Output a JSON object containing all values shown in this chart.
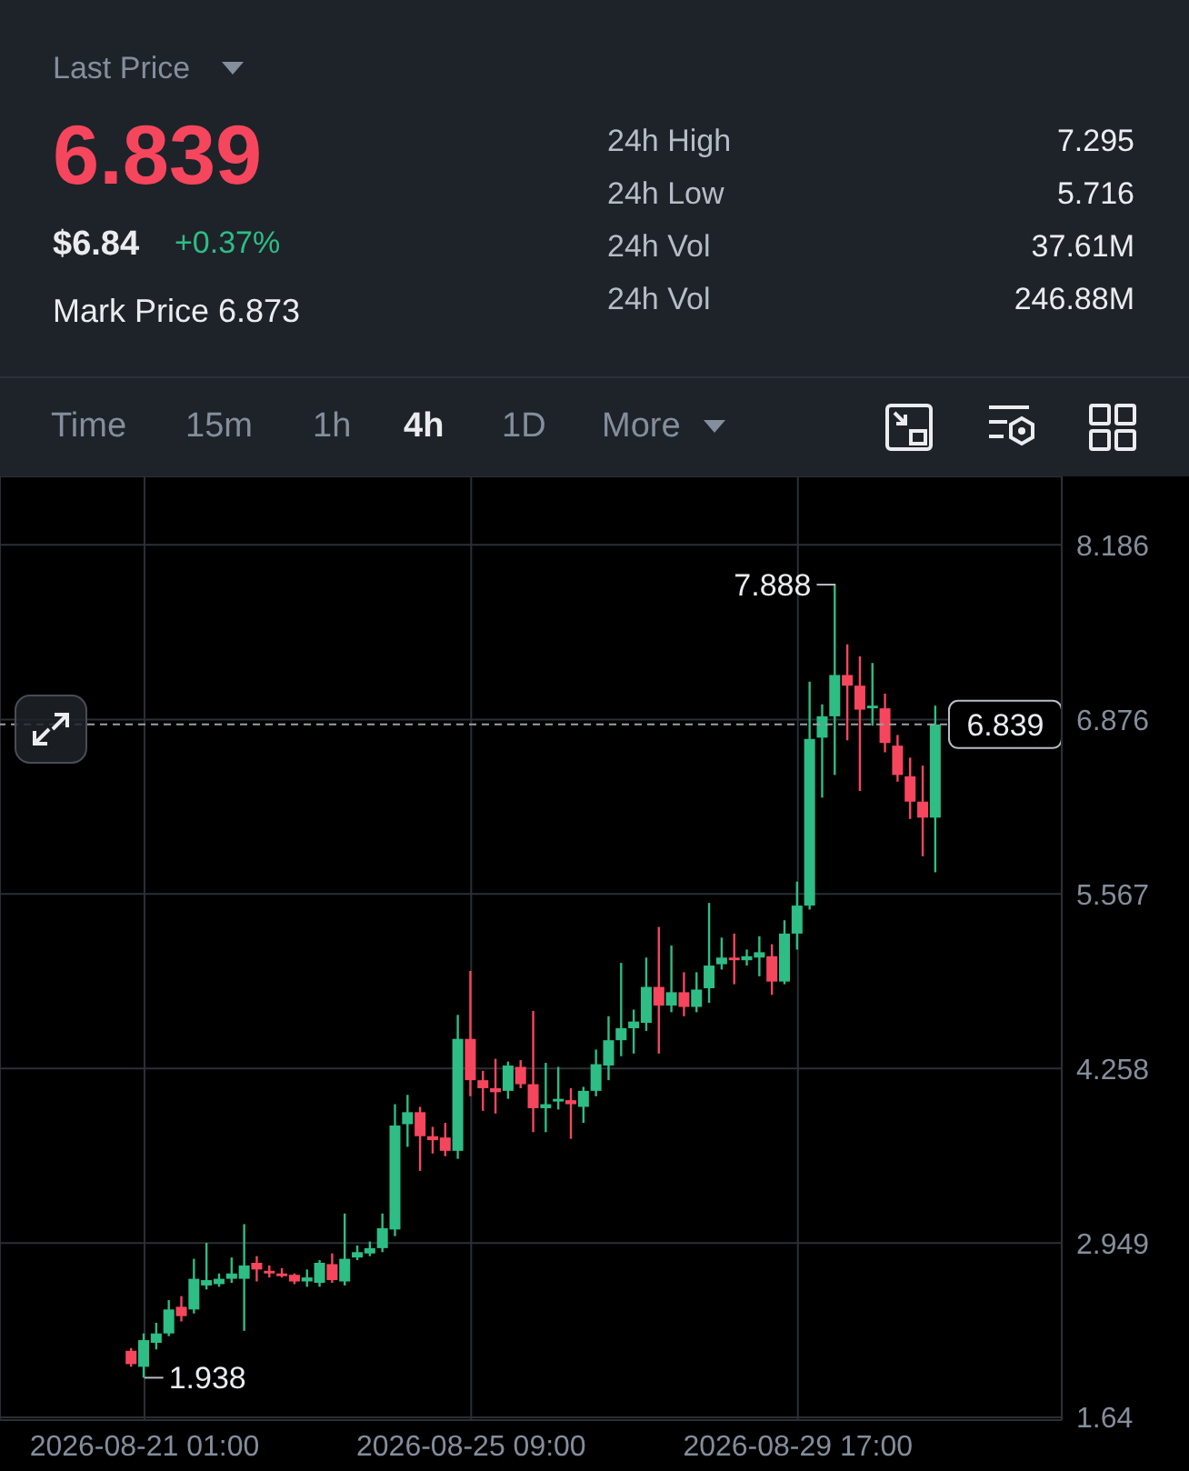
{
  "chart_data": [
    {
      "type": "other",
      "annotations": [
        "Last Price",
        "6.839",
        "$6.84",
        "+0.37%",
        "Mark Price 6.873",
        "24h High",
        "7.295",
        "24h Low",
        "5.716",
        "24h Vol",
        "37.61M",
        "24h Vol",
        "246.88M",
        "Time",
        "15m",
        "1h",
        "4h",
        "1D",
        "More"
      ]
    },
    {
      "type": "candlestick",
      "categories": [
        null,
        "2026-08-21 01:00",
        null,
        null,
        null,
        null,
        null,
        null,
        null,
        null,
        null,
        null,
        null,
        null,
        null,
        null,
        null,
        null,
        null,
        null,
        null,
        null,
        null,
        null,
        null,
        null,
        null,
        "2026-08-25 09:00",
        null,
        null,
        null,
        null,
        null,
        null,
        null,
        null,
        null,
        null,
        null,
        null,
        null,
        null,
        null,
        null,
        null,
        null,
        null,
        null,
        null,
        null,
        null,
        null,
        null,
        "2026-08-29 17:00",
        null,
        null,
        null,
        null,
        null,
        null,
        null,
        null,
        null,
        null,
        null
      ],
      "ohlc": [
        [
          2.14,
          2.16,
          2.02,
          2.04
        ],
        [
          2.02,
          2.27,
          1.938,
          2.22
        ],
        [
          2.2,
          2.35,
          2.15,
          2.27
        ],
        [
          2.27,
          2.52,
          2.25,
          2.45
        ],
        [
          2.47,
          2.55,
          2.36,
          2.4
        ],
        [
          2.45,
          2.83,
          2.42,
          2.68
        ],
        [
          2.63,
          2.95,
          2.6,
          2.67
        ],
        [
          2.64,
          2.72,
          2.62,
          2.68
        ],
        [
          2.68,
          2.84,
          2.65,
          2.72
        ],
        [
          2.68,
          3.09,
          2.29,
          2.78
        ],
        [
          2.8,
          2.85,
          2.66,
          2.75
        ],
        [
          2.74,
          2.78,
          2.69,
          2.72
        ],
        [
          2.72,
          2.76,
          2.69,
          2.7
        ],
        [
          2.71,
          2.72,
          2.64,
          2.66
        ],
        [
          2.66,
          2.75,
          2.62,
          2.69
        ],
        [
          2.65,
          2.82,
          2.62,
          2.8
        ],
        [
          2.79,
          2.87,
          2.65,
          2.67
        ],
        [
          2.66,
          3.17,
          2.63,
          2.83
        ],
        [
          2.84,
          2.93,
          2.82,
          2.88
        ],
        [
          2.87,
          2.96,
          2.85,
          2.91
        ],
        [
          2.91,
          3.17,
          2.88,
          3.06
        ],
        [
          3.05,
          3.99,
          3.0,
          3.83
        ],
        [
          3.84,
          4.06,
          3.67,
          3.93
        ],
        [
          3.93,
          3.97,
          3.49,
          3.75
        ],
        [
          3.75,
          3.82,
          3.62,
          3.72
        ],
        [
          3.74,
          3.85,
          3.6,
          3.64
        ],
        [
          3.64,
          4.66,
          3.58,
          4.48
        ],
        [
          4.48,
          4.99,
          4.05,
          4.17
        ],
        [
          4.17,
          4.24,
          3.94,
          4.11
        ],
        [
          4.11,
          4.33,
          3.92,
          4.08
        ],
        [
          4.09,
          4.31,
          4.03,
          4.28
        ],
        [
          4.27,
          4.32,
          4.11,
          4.14
        ],
        [
          4.14,
          4.69,
          3.78,
          3.96
        ],
        [
          3.96,
          4.3,
          3.78,
          3.99
        ],
        [
          4.01,
          4.27,
          3.95,
          4.03
        ],
        [
          4.02,
          4.11,
          3.73,
          3.99
        ],
        [
          3.97,
          4.12,
          3.85,
          4.09
        ],
        [
          4.09,
          4.4,
          4.05,
          4.29
        ],
        [
          4.28,
          4.65,
          4.17,
          4.47
        ],
        [
          4.47,
          5.05,
          4.35,
          4.56
        ],
        [
          4.56,
          4.7,
          4.37,
          4.61
        ],
        [
          4.6,
          5.09,
          4.54,
          4.87
        ],
        [
          4.87,
          5.32,
          4.37,
          4.73
        ],
        [
          4.73,
          5.18,
          4.68,
          4.83
        ],
        [
          4.83,
          4.98,
          4.65,
          4.72
        ],
        [
          4.72,
          4.98,
          4.68,
          4.85
        ],
        [
          4.86,
          5.5,
          4.75,
          5.03
        ],
        [
          5.04,
          5.24,
          5.0,
          5.09
        ],
        [
          5.09,
          5.27,
          4.89,
          5.07
        ],
        [
          5.07,
          5.15,
          5.03,
          5.1
        ],
        [
          5.09,
          5.25,
          4.95,
          5.13
        ],
        [
          5.1,
          5.19,
          4.81,
          4.91
        ],
        [
          4.91,
          5.37,
          4.89,
          5.27
        ],
        [
          5.27,
          5.66,
          5.15,
          5.48
        ],
        [
          5.48,
          7.16,
          5.45,
          6.73
        ],
        [
          6.74,
          6.99,
          6.29,
          6.9
        ],
        [
          6.9,
          7.888,
          6.46,
          7.21
        ],
        [
          7.21,
          7.44,
          6.72,
          7.13
        ],
        [
          7.13,
          7.35,
          6.34,
          6.95
        ],
        [
          6.96,
          7.3,
          6.83,
          6.98
        ],
        [
          6.96,
          7.07,
          6.63,
          6.7
        ],
        [
          6.68,
          6.76,
          6.41,
          6.46
        ],
        [
          6.45,
          6.59,
          6.13,
          6.26
        ],
        [
          6.26,
          6.53,
          5.85,
          6.14
        ],
        [
          6.14,
          6.98,
          5.73,
          6.839
        ]
      ],
      "colors": [
        "#f6465d",
        "#2ebd85",
        "#2ebd85",
        "#2ebd85",
        "#f6465d",
        "#2ebd85",
        "#2ebd85",
        "#2ebd85",
        "#2ebd85",
        "#2ebd85",
        "#f6465d",
        "#f6465d",
        "#f6465d",
        "#f6465d",
        "#2ebd85",
        "#2ebd85",
        "#f6465d",
        "#2ebd85",
        "#2ebd85",
        "#2ebd85",
        "#2ebd85",
        "#2ebd85",
        "#2ebd85",
        "#f6465d",
        "#f6465d",
        "#f6465d",
        "#2ebd85",
        "#f6465d",
        "#f6465d",
        "#f6465d",
        "#2ebd85",
        "#f6465d",
        "#f6465d",
        "#2ebd85",
        "#2ebd85",
        "#f6465d",
        "#2ebd85",
        "#2ebd85",
        "#2ebd85",
        "#2ebd85",
        "#2ebd85",
        "#2ebd85",
        "#f6465d",
        "#2ebd85",
        "#f6465d",
        "#2ebd85",
        "#2ebd85",
        "#2ebd85",
        "#f6465d",
        "#2ebd85",
        "#2ebd85",
        "#f6465d",
        "#2ebd85",
        "#2ebd85",
        "#2ebd85",
        "#2ebd85",
        "#2ebd85",
        "#f6465d",
        "#f6465d",
        "#2ebd85",
        "#f6465d",
        "#f6465d",
        "#f6465d",
        "#f6465d",
        "#2ebd85"
      ],
      "ylim": [
        1.62,
        8.7
      ],
      "yticks": [
        1.64,
        2.949,
        4.258,
        5.567,
        6.876,
        8.186
      ],
      "grid": true,
      "annotations": [
        "7.888",
        "1.938"
      ],
      "ref_lines": [
        {
          "axis": "y",
          "value": 6.839,
          "label": "6.839",
          "line_style": "dashed"
        }
      ]
    }
  ]
}
